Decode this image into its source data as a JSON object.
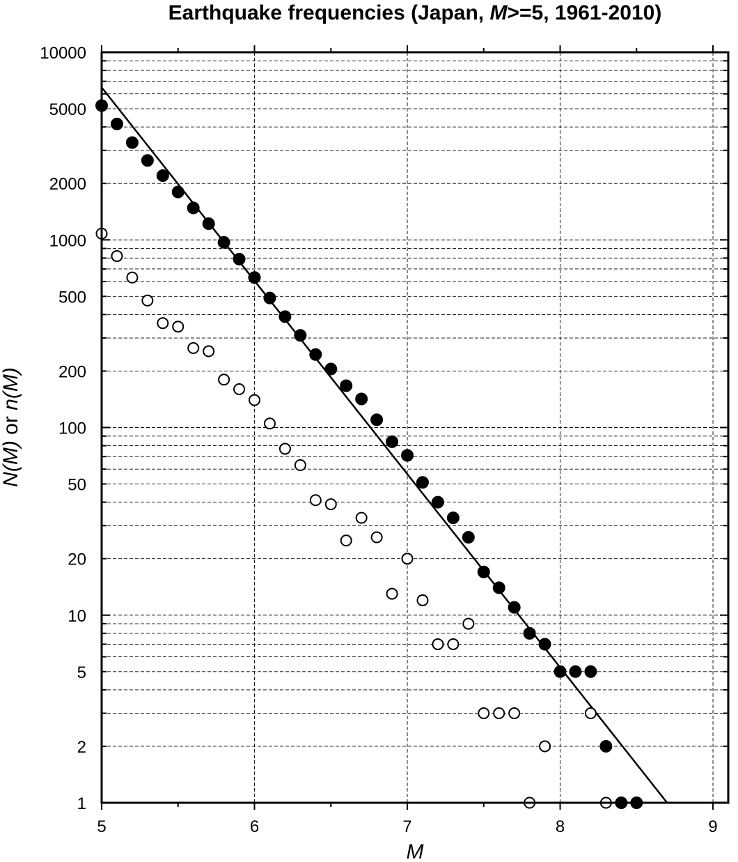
{
  "chart_data": {
    "type": "scatter",
    "title": {
      "prefix": "Earthquake frequencies (Japan, ",
      "italic": "M",
      "suffix": ">=5, 1961-2010)"
    },
    "xlabel": "M",
    "ylabel": {
      "part1_italic": "N(M)",
      "part2": " or ",
      "part3_italic": "n(M)"
    },
    "x_scale": "linear",
    "y_scale": "log",
    "xlim": [
      5,
      9.1
    ],
    "ylim": [
      1,
      10000
    ],
    "x_ticks": [
      5,
      6,
      7,
      8,
      9
    ],
    "x_tick_labels": [
      "5",
      "6",
      "7",
      "8",
      "9"
    ],
    "y_ticks": [
      1,
      2,
      5,
      10,
      20,
      50,
      100,
      200,
      500,
      1000,
      2000,
      5000,
      10000
    ],
    "y_tick_labels": [
      "1",
      "2",
      "5",
      "10",
      "20",
      "50",
      "100",
      "200",
      "500",
      "1000",
      "2000",
      "5000",
      "10000"
    ],
    "grid": true,
    "series": [
      {
        "marker": "filled-circle",
        "x": [
          5.0,
          5.1,
          5.2,
          5.3,
          5.4,
          5.5,
          5.6,
          5.7,
          5.8,
          5.9,
          6.0,
          6.1,
          6.2,
          6.3,
          6.4,
          6.5,
          6.6,
          6.7,
          6.8,
          6.9,
          7.0,
          7.1,
          7.2,
          7.3,
          7.4,
          7.5,
          7.6,
          7.7,
          7.8,
          7.9,
          8.0,
          8.1,
          8.2,
          8.3,
          8.4,
          8.5
        ],
        "y": [
          5200,
          4150,
          3300,
          2650,
          2200,
          1800,
          1480,
          1220,
          970,
          790,
          630,
          490,
          390,
          310,
          245,
          205,
          167,
          142,
          110,
          84,
          71,
          51,
          40,
          33,
          26,
          17,
          14,
          11,
          8,
          7,
          5,
          5,
          5,
          2,
          1,
          1
        ]
      },
      {
        "marker": "open-circle",
        "x": [
          5.0,
          5.1,
          5.2,
          5.3,
          5.4,
          5.5,
          5.6,
          5.7,
          5.8,
          5.9,
          6.0,
          6.1,
          6.2,
          6.3,
          6.4,
          6.5,
          6.6,
          6.7,
          6.8,
          6.9,
          7.0,
          7.1,
          7.2,
          7.3,
          7.4,
          7.5,
          7.6,
          7.7,
          7.8,
          7.9,
          8.2,
          8.3
        ],
        "y": [
          1080,
          820,
          630,
          475,
          360,
          345,
          265,
          255,
          180,
          160,
          140,
          105,
          77,
          63,
          41,
          39,
          25,
          33,
          26,
          13,
          20,
          12,
          7,
          7,
          9,
          3,
          3,
          3,
          1,
          2,
          3,
          1
        ]
      }
    ],
    "fit_line": {
      "x": [
        5.0,
        8.7
      ],
      "y": [
        6500,
        1
      ]
    },
    "colors": {
      "ink": "#000000",
      "background": "#ffffff",
      "grid": "#000000"
    }
  }
}
